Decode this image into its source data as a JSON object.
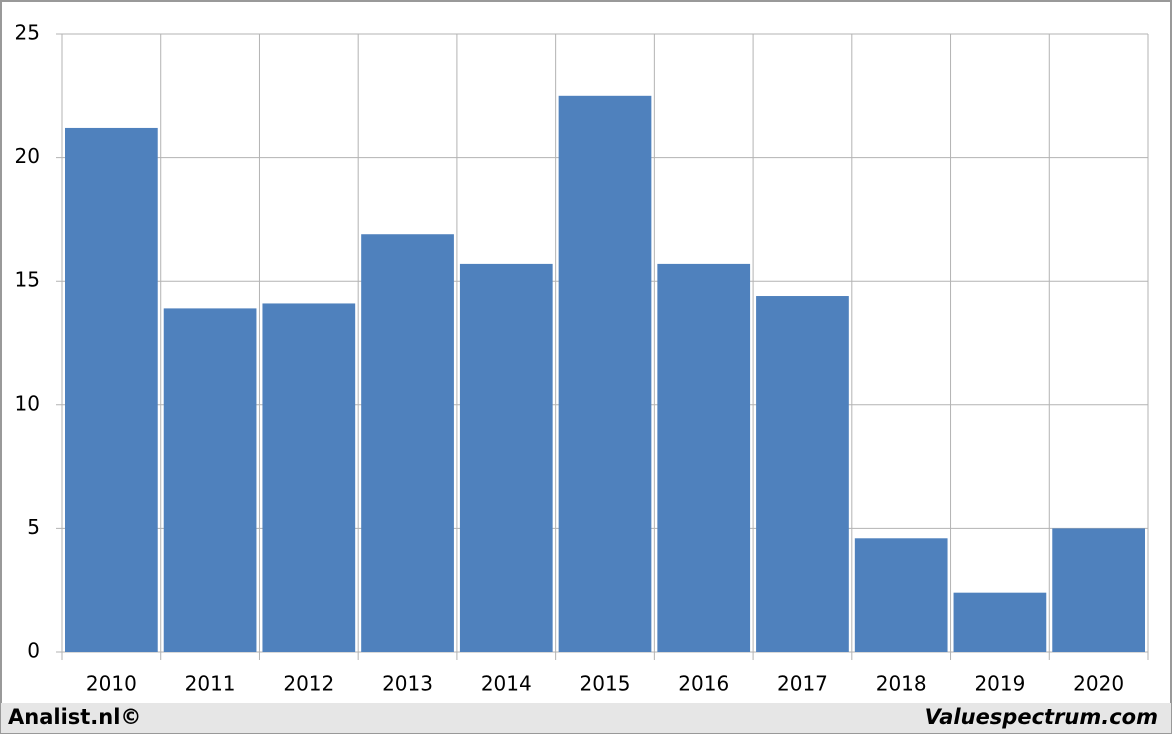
{
  "chart_data": {
    "type": "bar",
    "categories": [
      "2010",
      "2011",
      "2012",
      "2013",
      "2014",
      "2015",
      "2016",
      "2017",
      "2018",
      "2019",
      "2020"
    ],
    "values": [
      21.2,
      13.9,
      14.1,
      16.9,
      15.7,
      22.5,
      15.7,
      14.4,
      4.6,
      2.4,
      5.0
    ],
    "color": "#4f81bd",
    "ylim": [
      0,
      25
    ],
    "yticks": [
      0,
      5,
      10,
      15,
      20,
      25
    ],
    "grid": true,
    "annotations": [
      "Analist.nl©",
      "Valuespectrum.com"
    ]
  }
}
